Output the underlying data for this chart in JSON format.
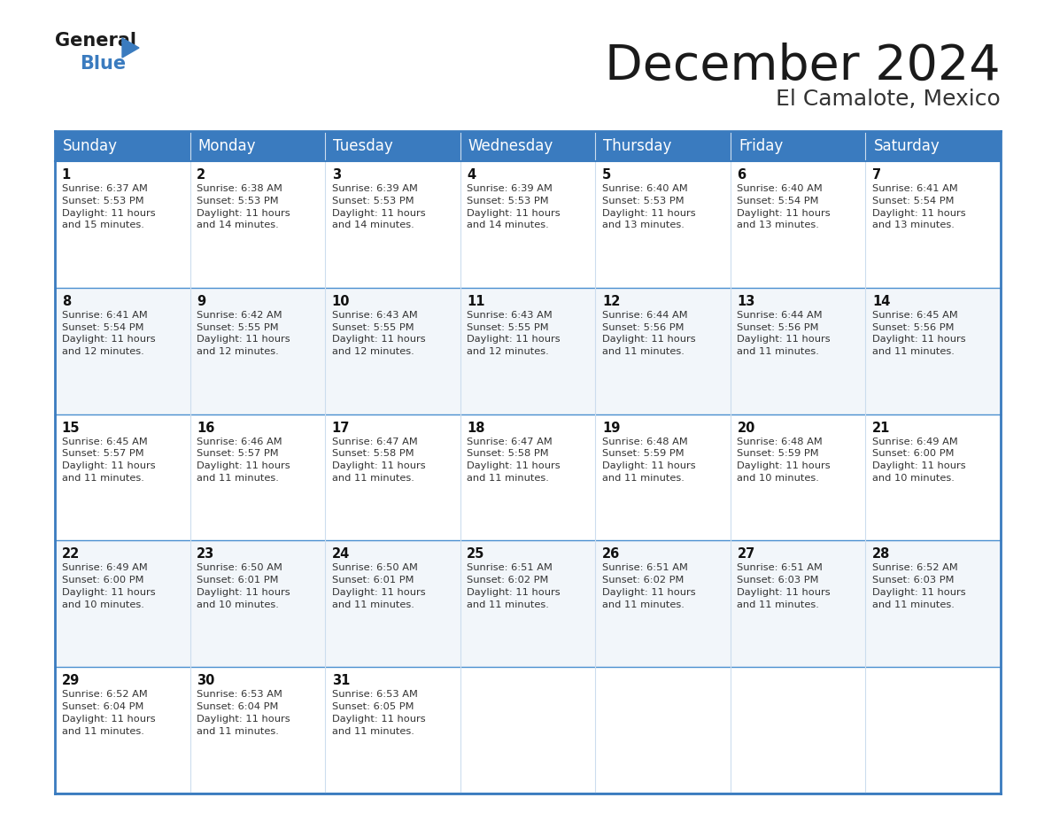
{
  "title": "December 2024",
  "subtitle": "El Camalote, Mexico",
  "header_color": "#3a7bbf",
  "header_text_color": "#ffffff",
  "border_color": "#3a7bbf",
  "row_border_color": "#4a8fd0",
  "col_line_color": "#ccddee",
  "days_of_week": [
    "Sunday",
    "Monday",
    "Tuesday",
    "Wednesday",
    "Thursday",
    "Friday",
    "Saturday"
  ],
  "calendar_data": [
    [
      {
        "day": "1",
        "sunrise": "6:37 AM",
        "sunset": "5:53 PM",
        "daylight": "11 hours",
        "daylight2": "and 15 minutes."
      },
      {
        "day": "2",
        "sunrise": "6:38 AM",
        "sunset": "5:53 PM",
        "daylight": "11 hours",
        "daylight2": "and 14 minutes."
      },
      {
        "day": "3",
        "sunrise": "6:39 AM",
        "sunset": "5:53 PM",
        "daylight": "11 hours",
        "daylight2": "and 14 minutes."
      },
      {
        "day": "4",
        "sunrise": "6:39 AM",
        "sunset": "5:53 PM",
        "daylight": "11 hours",
        "daylight2": "and 14 minutes."
      },
      {
        "day": "5",
        "sunrise": "6:40 AM",
        "sunset": "5:53 PM",
        "daylight": "11 hours",
        "daylight2": "and 13 minutes."
      },
      {
        "day": "6",
        "sunrise": "6:40 AM",
        "sunset": "5:54 PM",
        "daylight": "11 hours",
        "daylight2": "and 13 minutes."
      },
      {
        "day": "7",
        "sunrise": "6:41 AM",
        "sunset": "5:54 PM",
        "daylight": "11 hours",
        "daylight2": "and 13 minutes."
      }
    ],
    [
      {
        "day": "8",
        "sunrise": "6:41 AM",
        "sunset": "5:54 PM",
        "daylight": "11 hours",
        "daylight2": "and 12 minutes."
      },
      {
        "day": "9",
        "sunrise": "6:42 AM",
        "sunset": "5:55 PM",
        "daylight": "11 hours",
        "daylight2": "and 12 minutes."
      },
      {
        "day": "10",
        "sunrise": "6:43 AM",
        "sunset": "5:55 PM",
        "daylight": "11 hours",
        "daylight2": "and 12 minutes."
      },
      {
        "day": "11",
        "sunrise": "6:43 AM",
        "sunset": "5:55 PM",
        "daylight": "11 hours",
        "daylight2": "and 12 minutes."
      },
      {
        "day": "12",
        "sunrise": "6:44 AM",
        "sunset": "5:56 PM",
        "daylight": "11 hours",
        "daylight2": "and 11 minutes."
      },
      {
        "day": "13",
        "sunrise": "6:44 AM",
        "sunset": "5:56 PM",
        "daylight": "11 hours",
        "daylight2": "and 11 minutes."
      },
      {
        "day": "14",
        "sunrise": "6:45 AM",
        "sunset": "5:56 PM",
        "daylight": "11 hours",
        "daylight2": "and 11 minutes."
      }
    ],
    [
      {
        "day": "15",
        "sunrise": "6:45 AM",
        "sunset": "5:57 PM",
        "daylight": "11 hours",
        "daylight2": "and 11 minutes."
      },
      {
        "day": "16",
        "sunrise": "6:46 AM",
        "sunset": "5:57 PM",
        "daylight": "11 hours",
        "daylight2": "and 11 minutes."
      },
      {
        "day": "17",
        "sunrise": "6:47 AM",
        "sunset": "5:58 PM",
        "daylight": "11 hours",
        "daylight2": "and 11 minutes."
      },
      {
        "day": "18",
        "sunrise": "6:47 AM",
        "sunset": "5:58 PM",
        "daylight": "11 hours",
        "daylight2": "and 11 minutes."
      },
      {
        "day": "19",
        "sunrise": "6:48 AM",
        "sunset": "5:59 PM",
        "daylight": "11 hours",
        "daylight2": "and 11 minutes."
      },
      {
        "day": "20",
        "sunrise": "6:48 AM",
        "sunset": "5:59 PM",
        "daylight": "11 hours",
        "daylight2": "and 10 minutes."
      },
      {
        "day": "21",
        "sunrise": "6:49 AM",
        "sunset": "6:00 PM",
        "daylight": "11 hours",
        "daylight2": "and 10 minutes."
      }
    ],
    [
      {
        "day": "22",
        "sunrise": "6:49 AM",
        "sunset": "6:00 PM",
        "daylight": "11 hours",
        "daylight2": "and 10 minutes."
      },
      {
        "day": "23",
        "sunrise": "6:50 AM",
        "sunset": "6:01 PM",
        "daylight": "11 hours",
        "daylight2": "and 10 minutes."
      },
      {
        "day": "24",
        "sunrise": "6:50 AM",
        "sunset": "6:01 PM",
        "daylight": "11 hours",
        "daylight2": "and 11 minutes."
      },
      {
        "day": "25",
        "sunrise": "6:51 AM",
        "sunset": "6:02 PM",
        "daylight": "11 hours",
        "daylight2": "and 11 minutes."
      },
      {
        "day": "26",
        "sunrise": "6:51 AM",
        "sunset": "6:02 PM",
        "daylight": "11 hours",
        "daylight2": "and 11 minutes."
      },
      {
        "day": "27",
        "sunrise": "6:51 AM",
        "sunset": "6:03 PM",
        "daylight": "11 hours",
        "daylight2": "and 11 minutes."
      },
      {
        "day": "28",
        "sunrise": "6:52 AM",
        "sunset": "6:03 PM",
        "daylight": "11 hours",
        "daylight2": "and 11 minutes."
      }
    ],
    [
      {
        "day": "29",
        "sunrise": "6:52 AM",
        "sunset": "6:04 PM",
        "daylight": "11 hours",
        "daylight2": "and 11 minutes."
      },
      {
        "day": "30",
        "sunrise": "6:53 AM",
        "sunset": "6:04 PM",
        "daylight": "11 hours",
        "daylight2": "and 11 minutes."
      },
      {
        "day": "31",
        "sunrise": "6:53 AM",
        "sunset": "6:05 PM",
        "daylight": "11 hours",
        "daylight2": "and 11 minutes."
      },
      null,
      null,
      null,
      null
    ]
  ],
  "fig_width": 11.88,
  "fig_height": 9.18,
  "dpi": 100
}
